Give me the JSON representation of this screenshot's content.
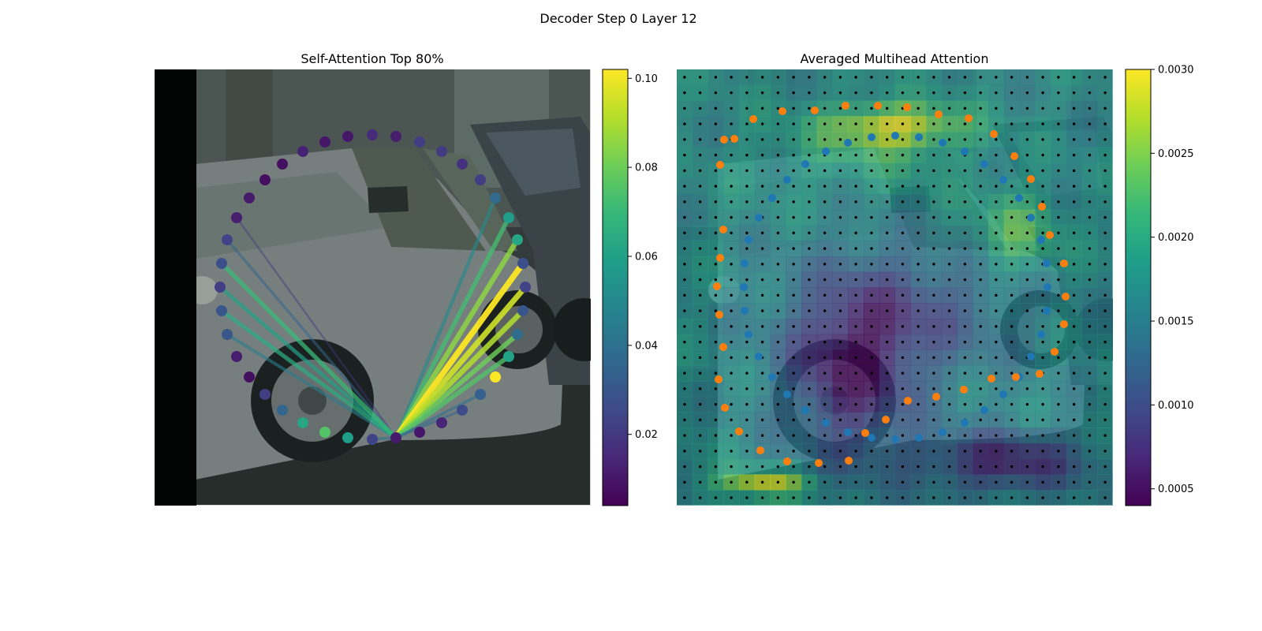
{
  "figure": {
    "suptitle": "Decoder Step 0 Layer 12"
  },
  "panels": {
    "left": {
      "title": "Self-Attention Top 80%"
    },
    "right": {
      "title": "Averaged Multihead Attention"
    }
  },
  "icons": {
    "background": "car-photo-image"
  },
  "colors": {
    "viridis": [
      "#440154",
      "#482878",
      "#3e4a89",
      "#31688e",
      "#26828e",
      "#1f9e89",
      "#35b779",
      "#6ece58",
      "#b5de2b",
      "#fde725"
    ],
    "left_contour_point": "#1f77b4",
    "right_predicted_point": "#ff7f0e",
    "right_reference_point": "#1f77b4",
    "sample_grid": "#000000",
    "image_padding": "#000000"
  },
  "chart_data": [
    {
      "type": "scatter",
      "title": "Self-Attention Top 80%",
      "description_of_marks": "contour query points colored by attention weight; lines from the query point to top-80% attended points",
      "query_index": 27,
      "points_x": [
        288,
        300,
        316,
        336,
        358,
        384,
        412,
        441,
        472,
        502,
        532,
        560,
        586,
        609,
        628,
        645,
        656,
        663,
        666,
        663,
        656,
        645,
        628,
        609,
        586,
        560,
        532,
        502,
        472,
        441,
        412,
        384,
        358,
        336,
        316,
        300,
        288,
        281,
        279,
        281
      ],
      "points_y": [
        304,
        276,
        251,
        228,
        208,
        192,
        180,
        173,
        171,
        173,
        180,
        192,
        208,
        228,
        251,
        276,
        304,
        334,
        364,
        394,
        424,
        452,
        478,
        500,
        520,
        536,
        548,
        555,
        557,
        555,
        548,
        536,
        520,
        500,
        478,
        452,
        424,
        394,
        364,
        334
      ],
      "weights": [
        0.024,
        0.012,
        0.011,
        0.008,
        0.008,
        0.013,
        0.01,
        0.01,
        0.016,
        0.012,
        0.022,
        0.021,
        0.018,
        0.022,
        0.038,
        0.058,
        0.062,
        0.028,
        0.024,
        0.03,
        0.038,
        0.06,
        0.102,
        0.034,
        0.026,
        0.014,
        0.01,
        0.011,
        0.024,
        0.058,
        0.075,
        0.062,
        0.036,
        0.022,
        0.008,
        0.012,
        0.03,
        0.03,
        0.022,
        0.028
      ],
      "attended_indices": [
        0,
        1,
        36,
        37,
        38,
        39,
        14,
        15,
        16,
        17,
        18,
        19,
        20,
        21,
        23,
        24,
        28
      ],
      "attended_weights": [
        0.035,
        0.02,
        0.045,
        0.065,
        0.06,
        0.07,
        0.05,
        0.072,
        0.085,
        0.102,
        0.095,
        0.09,
        0.08,
        0.075,
        0.04,
        0.035,
        0.04
      ],
      "colorbar": {
        "min": 0.004,
        "max": 0.102,
        "ticks": [
          0.02,
          0.04,
          0.06,
          0.08,
          0.1
        ],
        "tick_labels": [
          "0.02",
          "0.04",
          "0.06",
          "0.08",
          "0.10"
        ],
        "colormap": "viridis"
      }
    },
    {
      "type": "heatmap",
      "title": "Averaged Multihead Attention",
      "description_of_marks": "averaged attention over image grid with sampling grid dots, predicted (orange) and reference (blue) contour points",
      "grid_rows": 28,
      "grid_cols": 28,
      "hot_regions": [
        {
          "cx": 0.5,
          "cy": 0.13,
          "rx": 0.15,
          "ry": 0.05,
          "value": 0.003
        },
        {
          "cx": 0.2,
          "cy": 0.95,
          "rx": 0.1,
          "ry": 0.03,
          "value": 0.003
        },
        {
          "cx": 0.78,
          "cy": 0.38,
          "rx": 0.1,
          "ry": 0.1,
          "value": 0.0024
        },
        {
          "cx": 0.42,
          "cy": 0.2,
          "rx": 0.25,
          "ry": 0.08,
          "value": 0.002
        }
      ],
      "base_value": 0.0017,
      "cool_regions": [
        {
          "cx": 0.4,
          "cy": 0.7,
          "rx": 0.15,
          "ry": 0.2,
          "value": 0.0006
        },
        {
          "cx": 0.75,
          "cy": 0.9,
          "rx": 0.2,
          "ry": 0.07,
          "value": 0.0007
        },
        {
          "cx": 0.55,
          "cy": 0.55,
          "rx": 0.25,
          "ry": 0.15,
          "value": 0.0011
        }
      ],
      "predicted_points_x": [
        913,
        918,
        931,
        955,
        992,
        1033,
        1072,
        1113,
        1150,
        1190,
        1228,
        1260,
        1286,
        1307,
        1321,
        1331,
        1349,
        1351,
        1349,
        1337,
        1318,
        1288,
        1257,
        1222,
        1187,
        1151,
        1123,
        1097,
        1076,
        1038,
        998,
        964,
        937,
        919,
        911,
        917,
        912,
        909,
        913,
        917
      ],
      "predicted_points_y": [
        209,
        177,
        176,
        151,
        141,
        140,
        134,
        134,
        136,
        145,
        150,
        170,
        198,
        227,
        262,
        298,
        334,
        376,
        411,
        446,
        474,
        478,
        480,
        494,
        503,
        508,
        532,
        549,
        584,
        587,
        585,
        571,
        547,
        517,
        481,
        440,
        399,
        363,
        327,
        291
      ],
      "reference_points_x": [
        1021,
        1047,
        1075,
        1105,
        1135,
        1165,
        1195,
        1223,
        1248,
        1272,
        1292,
        1307,
        1320,
        1327,
        1328,
        1327,
        1320,
        1307,
        1292,
        1272,
        1248,
        1223,
        1195,
        1165,
        1135,
        1105,
        1075,
        1047,
        1021,
        998,
        979,
        962,
        949,
        944,
        943,
        944,
        949,
        962,
        979,
        998
      ],
      "reference_points_y": [
        208,
        192,
        181,
        174,
        172,
        174,
        181,
        192,
        208,
        228,
        251,
        276,
        304,
        334,
        364,
        394,
        424,
        452,
        478,
        500,
        520,
        536,
        548,
        555,
        557,
        555,
        548,
        536,
        520,
        500,
        478,
        452,
        424,
        394,
        364,
        334,
        304,
        276,
        251,
        228
      ],
      "colorbar": {
        "min": 0.0004,
        "max": 0.003,
        "ticks": [
          0.0005,
          0.001,
          0.0015,
          0.002,
          0.0025,
          0.003
        ],
        "tick_labels": [
          "0.0005",
          "0.0010",
          "0.0015",
          "0.0020",
          "0.0025",
          "0.0030"
        ],
        "colormap": "viridis"
      }
    }
  ]
}
